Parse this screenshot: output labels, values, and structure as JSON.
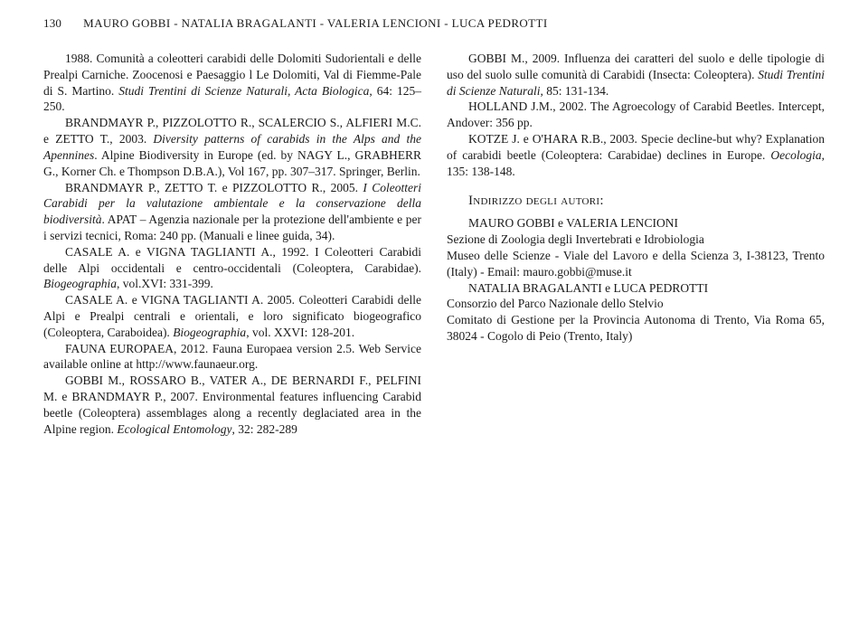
{
  "page_number": "130",
  "running_title": "MAURO GOBBI - NATALIA BRAGALANTI - VALERIA LENCIONI - LUCA PEDROTTI",
  "left_column": [
    "1988. Comunità a coleotteri carabidi delle Dolomiti Sudorientali e delle Prealpi Carniche. Zoocenosi e Paesaggio l Le Dolomiti, Val di Fiemme-Pale di S. Martino. <i>Studi Trentini di Scienze Naturali, Acta Biologica</i>, 64: 125–250.",
    "BRANDMAYR P., PIZZOLOTTO R., SCALERCIO S., ALFIERI M.C. e ZETTO T., 2003. <i>Diversity patterns of carabids in the Alps and the Apennines</i>. Alpine Biodiversity in Europe (ed. by NAGY L., GRABHERR G., Korner Ch. e Thompson D.B.A.), Vol 167, pp. 307–317. Springer, Berlin.",
    "BRANDMAYR P., ZETTO T. e PIZZOLOTTO R., 2005. <i>I Coleotteri Carabidi per la valutazione ambientale e la conservazione della biodiversità</i>. APAT – Agenzia nazionale per la protezione dell'ambiente e per i servizi tecnici, Roma: 240 pp. (Manuali e linee guida, 34).",
    "CASALE A. e VIGNA TAGLIANTI A., 1992. I Coleotteri Carabidi delle Alpi occidentali e centro-occidentali (Coleoptera, Carabidae). <i>Biogeographia</i>, vol.XVI: 331-399.",
    "CASALE A. e VIGNA TAGLIANTI A. 2005. Coleotteri Carabidi delle Alpi e Prealpi centrali e orientali, e loro significato biogeografico (Coleoptera, Caraboidea). <i>Biogeographia</i>, vol. XXVI: 128-201.",
    "FAUNA EUROPAEA, 2012. Fauna Europaea version 2.5. Web Service available online at http://www.faunaeur.org.",
    "GOBBI M., ROSSARO B., VATER A., DE BERNARDI F., PELFINI M. e BRANDMAYR P., 2007. Environmental features influencing Carabid beetle (Coleoptera) assemblages along a recently deglaciated area in the Alpine region. <i>Ecological Entomology</i>, 32: 282-289"
  ],
  "right_column": [
    "GOBBI M., 2009. Influenza dei caratteri del suolo e delle tipologie di uso del suolo sulle comunità di Carabidi (Insecta: Coleoptera). <i>Studi Trentini di Scienze Naturali</i>, 85: 131-134.",
    "HOLLAND J.M., 2002. The Agroecology of Carabid Beetles. Intercept, Andover: 356 pp.",
    "KOTZE J. e O'HARA R.B., 2003. Specie decline-but why? Explanation of carabidi beetle (Coleoptera: Carabidae) declines in Europe. <i>Oecologia</i>, 135: 138-148."
  ],
  "authors_section_title": "Indirizzo degli autori:",
  "authors_block": [
    "MAURO GOBBI e VALERIA LENCIONI",
    "Sezione di Zoologia degli Invertebrati e Idrobiologia",
    "Museo delle Scienze - Viale del Lavoro e della Scienza 3, I-38123, Trento (Italy) - Email: mauro.gobbi@muse.it",
    "NATALIA BRAGALANTI e LUCA PEDROTTI",
    "Consorzio del Parco Nazionale dello Stelvio",
    "Comitato di Gestione per la Provincia Autonoma di Trento, Via Roma 65, 38024 - Cogolo di Peio (Trento, Italy)"
  ]
}
